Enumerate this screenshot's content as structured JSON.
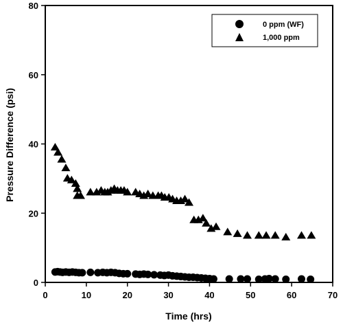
{
  "chart_data": {
    "type": "scatter",
    "xlabel": "Time (hrs)",
    "ylabel": "Pressure Difference (psi)",
    "xlim": [
      0,
      70
    ],
    "ylim": [
      0,
      80
    ],
    "xticks": [
      0,
      10,
      20,
      30,
      40,
      50,
      60,
      70
    ],
    "yticks": [
      0,
      20,
      40,
      60,
      80
    ],
    "grid": false,
    "legend_position": "top-right",
    "series": [
      {
        "name": "0 ppm (WF)",
        "marker": "circle",
        "color": "#000000",
        "points": [
          [
            2.4,
            3.0
          ],
          [
            3.0,
            3.1
          ],
          [
            3.6,
            3.0
          ],
          [
            4.2,
            2.9
          ],
          [
            5.0,
            3.0
          ],
          [
            5.8,
            2.9
          ],
          [
            6.6,
            3.0
          ],
          [
            7.4,
            2.9
          ],
          [
            8.2,
            2.8
          ],
          [
            9.0,
            2.8
          ],
          [
            11.0,
            2.9
          ],
          [
            12.8,
            2.8
          ],
          [
            14.0,
            2.9
          ],
          [
            15.0,
            2.8
          ],
          [
            16.0,
            2.9
          ],
          [
            17.0,
            2.8
          ],
          [
            18.0,
            2.6
          ],
          [
            19.0,
            2.5
          ],
          [
            20.0,
            2.5
          ],
          [
            22.0,
            2.4
          ],
          [
            23.0,
            2.3
          ],
          [
            24.0,
            2.4
          ],
          [
            25.0,
            2.3
          ],
          [
            26.5,
            2.2
          ],
          [
            28.0,
            2.1
          ],
          [
            29.0,
            2.0
          ],
          [
            30.0,
            2.1
          ],
          [
            31.0,
            1.9
          ],
          [
            32.0,
            1.8
          ],
          [
            33.0,
            1.7
          ],
          [
            34.0,
            1.6
          ],
          [
            35.0,
            1.5
          ],
          [
            36.0,
            1.5
          ],
          [
            37.0,
            1.4
          ],
          [
            38.0,
            1.3
          ],
          [
            39.0,
            1.2
          ],
          [
            40.0,
            1.1
          ],
          [
            41.0,
            1.0
          ],
          [
            44.8,
            1.0
          ],
          [
            47.6,
            1.0
          ],
          [
            49.2,
            1.0
          ],
          [
            52.0,
            0.9
          ],
          [
            53.5,
            1.0
          ],
          [
            54.5,
            1.1
          ],
          [
            56.0,
            1.0
          ],
          [
            58.6,
            0.9
          ],
          [
            62.4,
            1.0
          ],
          [
            64.6,
            0.9
          ]
        ]
      },
      {
        "name": "1,000 ppm",
        "marker": "triangle",
        "color": "#000000",
        "points": [
          [
            2.4,
            39.0
          ],
          [
            3.1,
            37.5
          ],
          [
            4.0,
            35.5
          ],
          [
            5.0,
            33.0
          ],
          [
            5.4,
            30.0
          ],
          [
            6.4,
            29.5
          ],
          [
            7.4,
            28.5
          ],
          [
            7.8,
            27.0
          ],
          [
            7.8,
            25.0
          ],
          [
            8.6,
            25.0
          ],
          [
            11.0,
            26.0
          ],
          [
            12.5,
            26.0
          ],
          [
            13.6,
            26.5
          ],
          [
            14.5,
            26.0
          ],
          [
            15.2,
            26.0
          ],
          [
            16.0,
            26.5
          ],
          [
            16.8,
            27.0
          ],
          [
            17.6,
            26.5
          ],
          [
            18.4,
            26.5
          ],
          [
            19.2,
            26.5
          ],
          [
            20.0,
            26.0
          ],
          [
            22.0,
            26.0
          ],
          [
            23.0,
            25.5
          ],
          [
            24.0,
            25.0
          ],
          [
            25.0,
            25.5
          ],
          [
            26.2,
            25.0
          ],
          [
            27.5,
            25.0
          ],
          [
            28.3,
            25.0
          ],
          [
            29.1,
            24.5
          ],
          [
            30.1,
            24.5
          ],
          [
            31.0,
            24.0
          ],
          [
            32.0,
            23.5
          ],
          [
            33.0,
            23.5
          ],
          [
            34.0,
            24.0
          ],
          [
            35.0,
            23.0
          ],
          [
            36.2,
            18.0
          ],
          [
            37.3,
            18.0
          ],
          [
            38.4,
            18.5
          ],
          [
            39.2,
            17.0
          ],
          [
            40.4,
            15.5
          ],
          [
            41.6,
            16.0
          ],
          [
            44.4,
            14.5
          ],
          [
            46.8,
            14.0
          ],
          [
            49.2,
            13.5
          ],
          [
            52.0,
            13.5
          ],
          [
            53.8,
            13.5
          ],
          [
            56.0,
            13.5
          ],
          [
            58.6,
            13.0
          ],
          [
            62.4,
            13.5
          ],
          [
            64.8,
            13.5
          ]
        ]
      }
    ]
  }
}
